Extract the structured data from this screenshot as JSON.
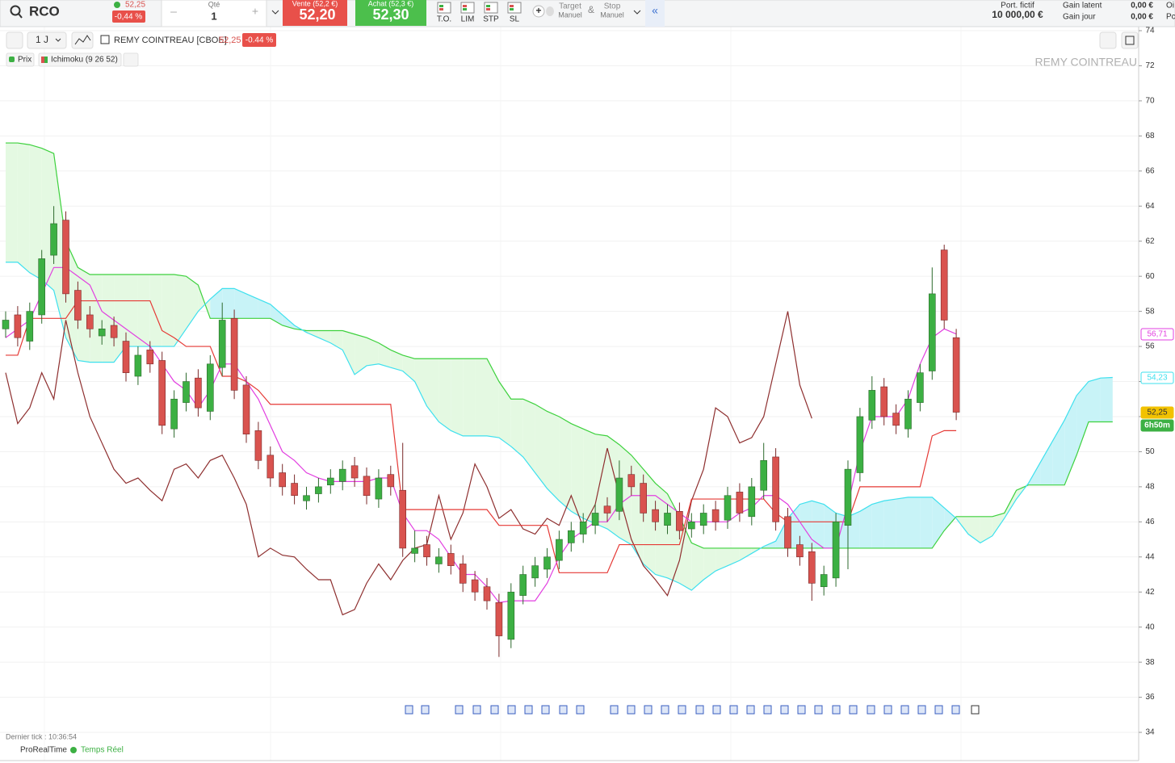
{
  "toolbar": {
    "symbol": "RCO",
    "last": "52,25",
    "change": "-0,44 %",
    "qty_label": "Qté",
    "qty": "1",
    "minus": "–",
    "plus": "+",
    "sell_label": "Vente (52,2 €)",
    "sell": "52,20",
    "buy_label": "Achat (52,3 €)",
    "buy": "52,30",
    "orders": [
      "T.O.",
      "LIM",
      "STP",
      "SL"
    ],
    "target": "Target",
    "target_sub": "Manuel",
    "amp": "&",
    "stop": "Stop",
    "stop_sub": "Manuel",
    "collapse": "«",
    "portfolio_label": "Port. fictif",
    "portfolio": "10 000,00 €",
    "unrealized_label": "Gain latent",
    "unrealized": "0,00 €",
    "day_label": "Gain jour",
    "day": "0,00 €",
    "cut_top": "Oi",
    "cut_bottom": "Pc"
  },
  "chart_header": {
    "period": "1 J",
    "instrument": "REMY COINTREAU [CBOE]",
    "last": "52,25",
    "change": "-0.44 %",
    "legend": [
      "Prix",
      "Ichimoku (9 26 52)"
    ]
  },
  "chart_data": {
    "type": "candlestick",
    "title": "REMY COINTREAU",
    "ylim": [
      32.4,
      74.2
    ],
    "yticks": [
      34,
      36,
      38,
      40,
      42,
      44,
      46,
      48,
      50,
      52,
      54,
      56,
      58,
      60,
      62,
      64,
      66,
      68,
      70,
      72,
      74
    ],
    "grid": true,
    "up_color": "#3cb043",
    "down_color": "#d9534f",
    "open": [
      57,
      57.8,
      56.3,
      57.8,
      61.2,
      63.2,
      59.2,
      57.8,
      56.6,
      57.2,
      56.3,
      54.3,
      55.8,
      55.2,
      51.3,
      52.8,
      54.2,
      52.3,
      54.8,
      57.6,
      53.8,
      51.2,
      49.8,
      48.8,
      48.2,
      47.2,
      47.6,
      48.1,
      48.3,
      49.2,
      48.6,
      47.3,
      48.7,
      47.8,
      44.2,
      44.7,
      43.6,
      44.2,
      43.6,
      42.7,
      42.3,
      41.4,
      39.3,
      41.8,
      42.8,
      43.3,
      43.8,
      44.8,
      45.3,
      45.8,
      46.9,
      46.6,
      48.7,
      48.2,
      46.7,
      45.8,
      46.6,
      45.6,
      45.8,
      46.7,
      46.1,
      47.7,
      46.3,
      47.8,
      49.7,
      46.3,
      44.7,
      44.3,
      42.3,
      42.8,
      45.8,
      48.8,
      51.8,
      53.7,
      52.2,
      51.3,
      52.8,
      54.6,
      61.5,
      56.5
    ],
    "high": [
      58,
      58.3,
      58.5,
      61.5,
      64,
      63.7,
      59.7,
      58.3,
      57.5,
      57.7,
      56.8,
      56,
      56.3,
      55.7,
      53.5,
      54.5,
      54.7,
      55.5,
      58.5,
      58.1,
      54.3,
      51.7,
      50.3,
      49.3,
      48.7,
      48,
      48.5,
      49,
      49.5,
      49.7,
      49.1,
      49,
      49.2,
      50.5,
      45.5,
      45.2,
      44.5,
      44.7,
      44.1,
      43.2,
      42.8,
      41.9,
      42.5,
      43.5,
      44,
      44.5,
      45.5,
      46,
      46.5,
      47,
      47.4,
      49.5,
      49.2,
      48.7,
      47.2,
      47,
      47.1,
      46.5,
      47,
      47.2,
      48,
      48.2,
      48.5,
      50.5,
      50.2,
      46.8,
      45.2,
      44.8,
      43.5,
      46.5,
      49.5,
      52.5,
      54.3,
      54.2,
      52.7,
      53.5,
      55,
      60.5,
      61.8,
      57
    ],
    "low": [
      56.5,
      56,
      55.8,
      57.3,
      60.7,
      58.5,
      57,
      56.5,
      56.1,
      56,
      54,
      53.8,
      54.5,
      51,
      50.8,
      52.3,
      52,
      51.8,
      54.3,
      53,
      50.5,
      49,
      48,
      47.5,
      47,
      46.7,
      47.1,
      47.6,
      47.8,
      48,
      47,
      46.8,
      47.5,
      44,
      43.7,
      43.5,
      43.1,
      43,
      42,
      41.5,
      41,
      38.3,
      38.8,
      41.3,
      42.3,
      42.8,
      43.3,
      44.3,
      44.8,
      45.3,
      46,
      46.1,
      47.5,
      46,
      45.5,
      45.3,
      45,
      45.1,
      45.3,
      45.5,
      45.6,
      46,
      45.8,
      47.3,
      45.5,
      44,
      43.5,
      41.5,
      41.8,
      42.3,
      43.3,
      48.3,
      51.3,
      51.5,
      51,
      50.8,
      52.3,
      54.1,
      57,
      51.8
    ],
    "close": [
      57.5,
      56.5,
      58,
      61,
      63,
      59,
      57.5,
      57,
      57,
      56.5,
      54.5,
      55.5,
      55,
      51.5,
      53,
      54,
      52.5,
      55,
      57.5,
      53.5,
      51,
      49.5,
      48.5,
      48,
      47.5,
      47.5,
      48,
      48.5,
      49,
      48.5,
      47.5,
      48.5,
      48,
      44.5,
      44.5,
      44,
      44,
      43.5,
      42.5,
      42,
      41.5,
      39.5,
      42,
      43,
      43.5,
      44,
      45,
      45.5,
      46,
      46.5,
      46.5,
      48.5,
      48,
      46.5,
      46,
      46.5,
      45.5,
      46,
      46.5,
      46,
      47.5,
      46.5,
      48,
      49.5,
      46,
      44.5,
      44,
      42.5,
      43,
      46,
      49,
      52,
      53.5,
      52,
      51.5,
      53,
      54.5,
      59,
      57.5,
      52.25
    ],
    "cloud_colors": [
      "#e4f9e2",
      "#c8f3f7"
    ],
    "lines": [
      {
        "color": "#3dd13d",
        "values": [
          67.6,
          67.6,
          67.5,
          67.3,
          67,
          62,
          60.5,
          60.1,
          60.1,
          60.1,
          60.1,
          60.1,
          60.1,
          60.1,
          60.1,
          60,
          59.5,
          57.6,
          57.6,
          57.6,
          57.6,
          57.6,
          57.6,
          57.2,
          57,
          56.9,
          56.9,
          56.9,
          56.9,
          56.7,
          56.5,
          56.2,
          55.8,
          55.5,
          55.3,
          55.3,
          55.3,
          55.3,
          55.3,
          55.3,
          55.3,
          54,
          53,
          53,
          52.7,
          52.3,
          52,
          51.6,
          51.3,
          51,
          50.9,
          50.4,
          49.8,
          49,
          48.2,
          47.6,
          46.3,
          44.8,
          44.5,
          44.5,
          44.5,
          44.5,
          44.5,
          44.5,
          44.5,
          44.5,
          44.5,
          44.5,
          44.5,
          44.5,
          44.5,
          44.5,
          44.5,
          44.5,
          44.5,
          44.5,
          44.5,
          44.5,
          45.5,
          46.3,
          46.3,
          46.3,
          46.3,
          46.5,
          47.8,
          48.1,
          48.1,
          48.1,
          48.1,
          49.8,
          51.7,
          51.7,
          51.7
        ]
      },
      {
        "color": "#3ee0ee",
        "values": [
          60.8,
          60.8,
          60.2,
          59.8,
          59.2,
          56.5,
          55.2,
          55.1,
          55.1,
          55.1,
          56,
          56,
          56,
          56,
          56,
          57,
          58,
          58.7,
          59.3,
          59.3,
          59,
          58.7,
          58.4,
          57.8,
          57.2,
          56.8,
          56.5,
          56.2,
          55.8,
          54.4,
          54.9,
          55,
          54.8,
          54.6,
          54,
          52.6,
          51.7,
          51.2,
          50.9,
          50.9,
          50.9,
          50.8,
          50.3,
          49.7,
          48.8,
          47.9,
          47.2,
          46.6,
          46.2,
          45.9,
          45.6,
          45.1,
          44.7,
          43.6,
          43,
          42.8,
          42.5,
          42.1,
          42.7,
          43.2,
          43.5,
          43.8,
          44.2,
          44.6,
          44.9,
          46.2,
          47,
          47.2,
          47,
          46.5,
          46.3,
          46.6,
          47,
          47.2,
          47.3,
          47.4,
          47.4,
          47.4,
          46.8,
          46.2,
          45.3,
          44.8,
          45.2,
          46.2,
          47.3,
          48.2,
          49.4,
          50.6,
          51.8,
          53.2,
          54,
          54.2,
          54.23
        ]
      },
      {
        "color": "#8e2f2f",
        "values": [
          54.5,
          51.6,
          52.5,
          54.5,
          53,
          57.5,
          54.5,
          52,
          50.5,
          49,
          48.2,
          48.5,
          47.8,
          47.2,
          49,
          49.3,
          48.5,
          49.5,
          49.8,
          48.5,
          47,
          44,
          44.5,
          44.1,
          44,
          43.3,
          42.7,
          42.7,
          40.7,
          41,
          42.5,
          43.6,
          42.7,
          43.8,
          44.5,
          44.7,
          47.5,
          45,
          46.5,
          49.3,
          48,
          46.2,
          46.7,
          45.6,
          45.3,
          46.2,
          45.8,
          47.5,
          45.7,
          47,
          50.2,
          47.5,
          45,
          43.5,
          42.7,
          41.8,
          43.8,
          47.2,
          49,
          52.5,
          52,
          50.5,
          50.8,
          52,
          55,
          58,
          53.8,
          51.9
        ]
      },
      {
        "color": "#e53935",
        "values": [
          55.5,
          55.5,
          57.6,
          57.6,
          57.6,
          57.6,
          58.6,
          58.6,
          58.6,
          58.6,
          58.6,
          58.6,
          58.6,
          56.9,
          56.5,
          56,
          56,
          56,
          54.3,
          54.3,
          54,
          53.5,
          52.7,
          52.7,
          52.7,
          52.7,
          52.7,
          52.7,
          52.7,
          52.7,
          52.7,
          52.7,
          52.7,
          46.7,
          46.7,
          46.7,
          46.7,
          46.7,
          46.7,
          46.7,
          46.7,
          45.8,
          45.8,
          45.8,
          45.8,
          45.8,
          43.1,
          43.1,
          43.1,
          43.1,
          43.1,
          44.7,
          44.7,
          44.7,
          44.7,
          44.7,
          44.7,
          47.3,
          47.3,
          47.3,
          47.3,
          47.3,
          47.3,
          47.3,
          46.5,
          46,
          46,
          46,
          46,
          46,
          46,
          48,
          48,
          48,
          48,
          48,
          48,
          50.9,
          51.2,
          51.2
        ]
      },
      {
        "color": "#e23fe0",
        "values": [
          56.5,
          57,
          57.5,
          59,
          60.5,
          60.5,
          60,
          59.5,
          58,
          57.5,
          57,
          56.5,
          56,
          55,
          54,
          53.5,
          52.5,
          53.5,
          55,
          55,
          54,
          53,
          51.5,
          50,
          49.5,
          48.8,
          48.5,
          48.3,
          48.3,
          48.3,
          48.3,
          48.5,
          48.5,
          46.5,
          45.5,
          45.5,
          45,
          44,
          43,
          43,
          42.3,
          41.4,
          41.5,
          41.5,
          41.5,
          42.5,
          44,
          45,
          45.5,
          46,
          46,
          47,
          47.5,
          47.5,
          47.5,
          47,
          46.5,
          46,
          46,
          46,
          46,
          46.5,
          46.8,
          47.5,
          47.5,
          47,
          46,
          45,
          44.5,
          44.5,
          47,
          50,
          52,
          52,
          52,
          53,
          55,
          56.5,
          57,
          56.71
        ]
      }
    ]
  },
  "price_tags": [
    {
      "text": "56,71",
      "color": "#e23fe0"
    },
    {
      "text": "54,23",
      "color": "#3ee0ee"
    },
    {
      "text": "52,25",
      "color": "#f2c200"
    },
    {
      "text": "6h50m",
      "color": "#3cb043"
    }
  ],
  "footer": {
    "last_tick": "Dernier tick : 10:36:54",
    "provider": "ProRealTime",
    "mode": "Temps Réel"
  }
}
